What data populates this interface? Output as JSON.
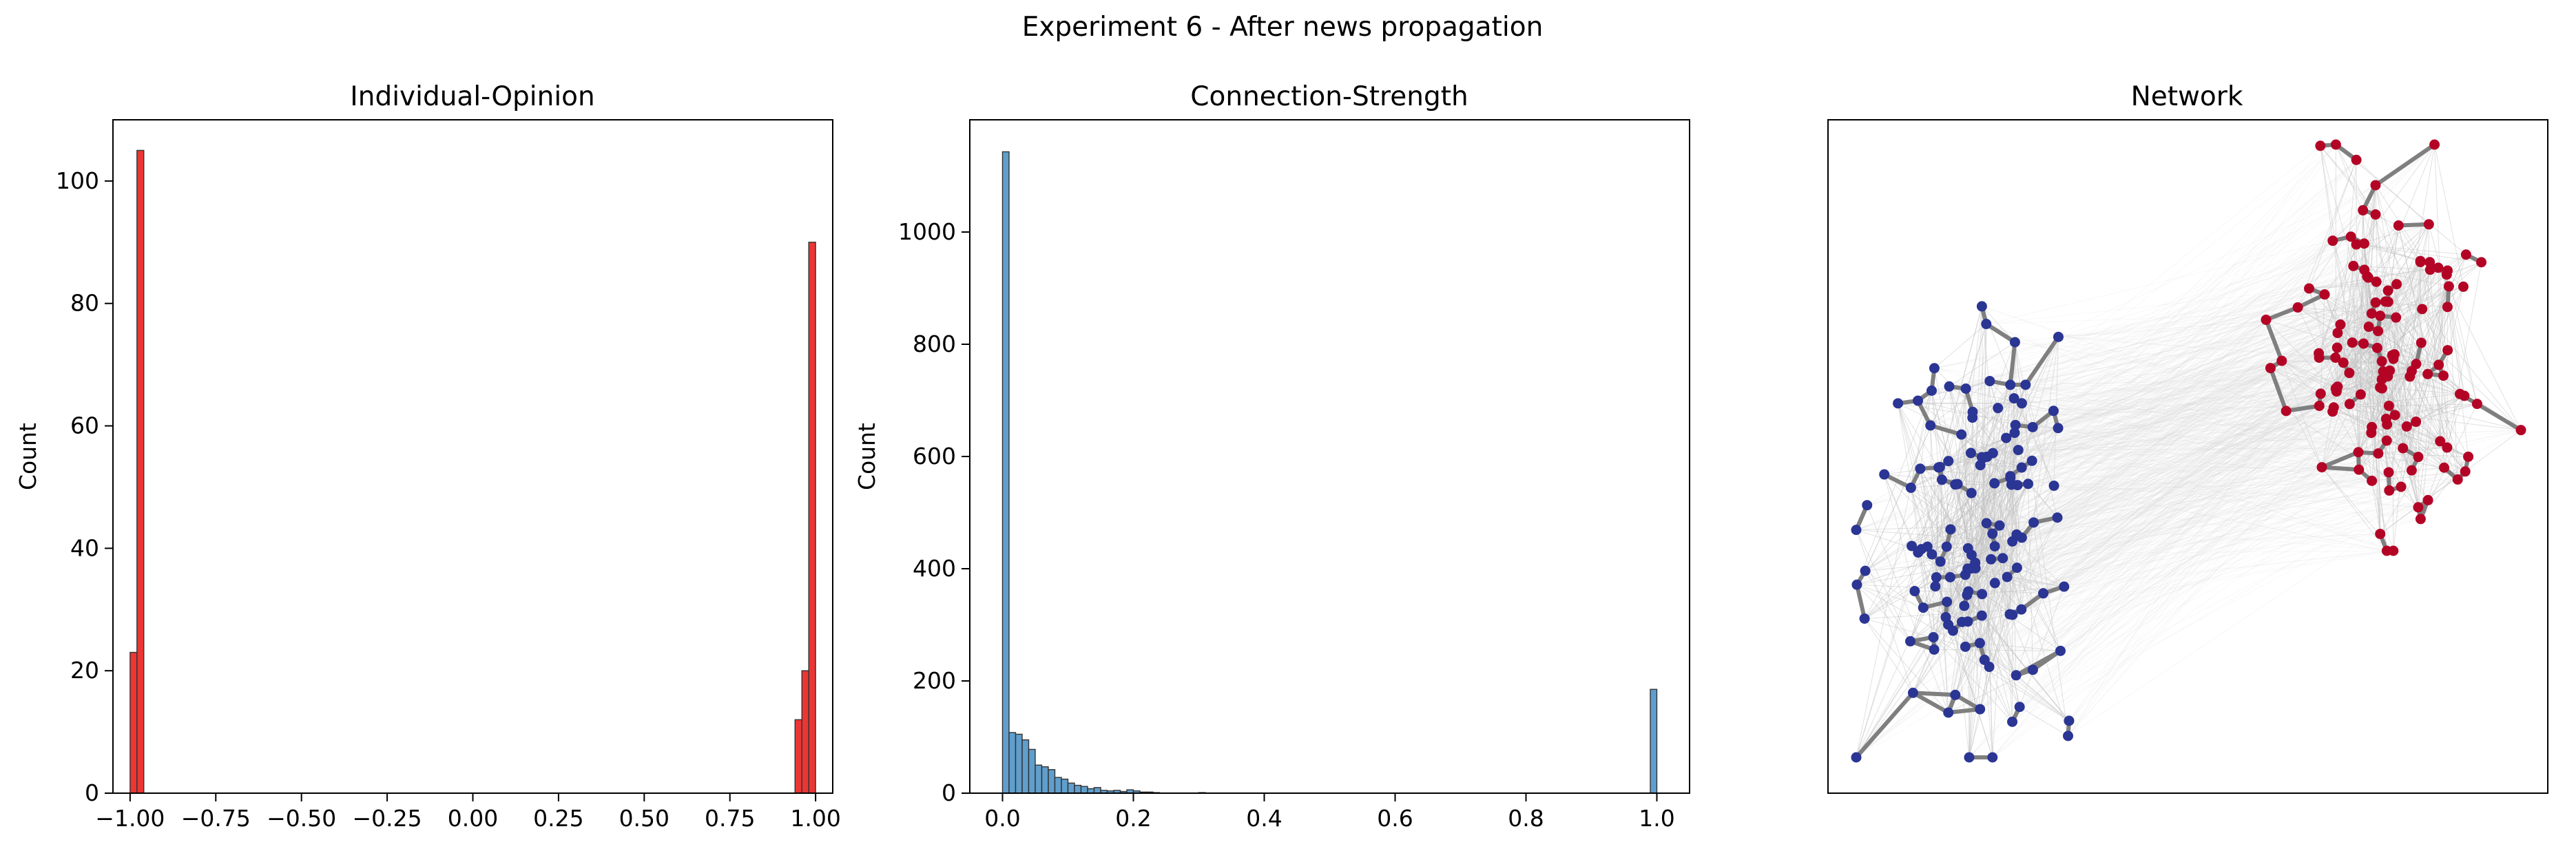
{
  "figure": {
    "title": "Experiment 6 - After news propagation"
  },
  "colors": {
    "opinion_bar": "#e8201e",
    "strength_bar": "#4f93c6",
    "node_negative": "#2b3594",
    "node_positive": "#b40426",
    "strong_edge": "#7f7f7f",
    "weak_edge": "#bdbdbd"
  },
  "chart_data": [
    {
      "type": "bar",
      "title": "Individual-Opinion",
      "xlabel": "",
      "ylabel": "Count",
      "xlim": [
        -1.05,
        1.05
      ],
      "ylim": [
        0,
        110
      ],
      "xticks": [
        "−1.00",
        "−0.75",
        "−0.50",
        "−0.25",
        "0.00",
        "0.25",
        "0.50",
        "0.75",
        "1.00"
      ],
      "xtick_values": [
        -1.0,
        -0.75,
        -0.5,
        -0.25,
        0.0,
        0.25,
        0.5,
        0.75,
        1.0
      ],
      "yticks": [
        "0",
        "20",
        "40",
        "60",
        "80",
        "100"
      ],
      "ytick_values": [
        0,
        20,
        40,
        60,
        80,
        100
      ],
      "bin_width": 0.02,
      "bins": [
        {
          "x": -1.0,
          "value": 23
        },
        {
          "x": -0.98,
          "value": 105
        },
        {
          "x": 0.94,
          "value": 12
        },
        {
          "x": 0.96,
          "value": 20
        },
        {
          "x": 0.98,
          "value": 90
        }
      ],
      "grid": false
    },
    {
      "type": "bar",
      "title": "Connection-Strength",
      "xlabel": "",
      "ylabel": "Count",
      "xlim": [
        -0.05,
        1.05
      ],
      "ylim": [
        0,
        1200
      ],
      "xticks": [
        "0.0",
        "0.2",
        "0.4",
        "0.6",
        "0.8",
        "1.0"
      ],
      "xtick_values": [
        0.0,
        0.2,
        0.4,
        0.6,
        0.8,
        1.0
      ],
      "yticks": [
        "0",
        "200",
        "400",
        "600",
        "800",
        "1000"
      ],
      "ytick_values": [
        0,
        200,
        400,
        600,
        800,
        1000
      ],
      "bin_width": 0.01,
      "bins": [
        {
          "x": 0.0,
          "value": 1143
        },
        {
          "x": 0.01,
          "value": 108
        },
        {
          "x": 0.02,
          "value": 105
        },
        {
          "x": 0.03,
          "value": 95
        },
        {
          "x": 0.04,
          "value": 78
        },
        {
          "x": 0.05,
          "value": 50
        },
        {
          "x": 0.06,
          "value": 47
        },
        {
          "x": 0.07,
          "value": 42
        },
        {
          "x": 0.08,
          "value": 28
        },
        {
          "x": 0.09,
          "value": 25
        },
        {
          "x": 0.1,
          "value": 18
        },
        {
          "x": 0.11,
          "value": 14
        },
        {
          "x": 0.12,
          "value": 12
        },
        {
          "x": 0.13,
          "value": 8
        },
        {
          "x": 0.14,
          "value": 10
        },
        {
          "x": 0.15,
          "value": 5
        },
        {
          "x": 0.16,
          "value": 4
        },
        {
          "x": 0.17,
          "value": 5
        },
        {
          "x": 0.18,
          "value": 3
        },
        {
          "x": 0.19,
          "value": 6
        },
        {
          "x": 0.2,
          "value": 4
        },
        {
          "x": 0.21,
          "value": 2
        },
        {
          "x": 0.22,
          "value": 2
        },
        {
          "x": 0.23,
          "value": 1
        },
        {
          "x": 0.3,
          "value": 1
        },
        {
          "x": 0.99,
          "value": 185
        }
      ],
      "grid": false
    },
    {
      "type": "network",
      "title": "Network",
      "groups": [
        {
          "opinion": -1,
          "color": "#2b3594",
          "nodes": 128
        },
        {
          "opinion": 1,
          "color": "#b40426",
          "nodes": 122
        }
      ],
      "axes_visible": false
    }
  ]
}
